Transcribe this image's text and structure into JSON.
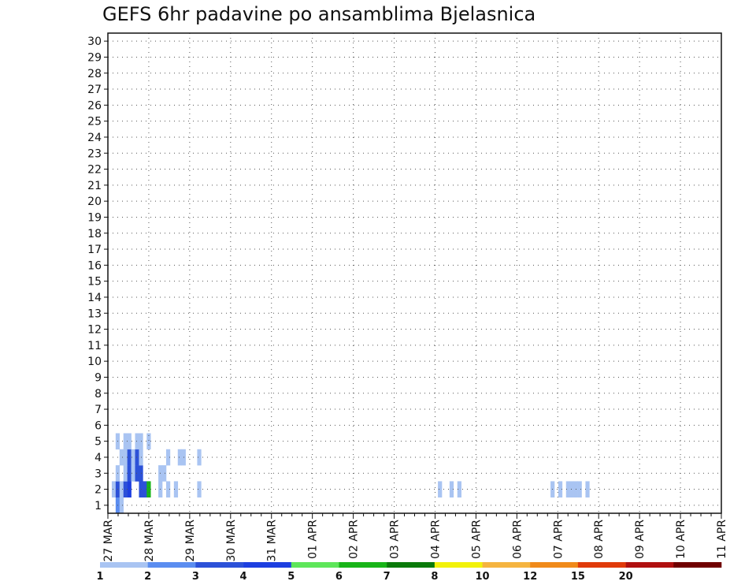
{
  "chart_data": {
    "type": "heatmap",
    "title": "GEFS 6hr padavine po ansamblima Bjelasnica",
    "x_tick_labels": [
      "27 MAR",
      "28 MAR",
      "29 MAR",
      "30 MAR",
      "31 MAR",
      "01 APR",
      "02 APR",
      "03 APR",
      "04 APR",
      "05 APR",
      "06 APR",
      "07 APR",
      "08 APR",
      "09 APR",
      "10 APR",
      "11 APR"
    ],
    "y_tick_labels": [
      "1",
      "2",
      "3",
      "4",
      "5",
      "6",
      "7",
      "8",
      "9",
      "10",
      "11",
      "12",
      "13",
      "14",
      "15",
      "16",
      "17",
      "18",
      "19",
      "20",
      "21",
      "22",
      "23",
      "24",
      "25",
      "26",
      "27",
      "28",
      "29",
      "30"
    ],
    "xlim_days": [
      0,
      15
    ],
    "ylim_members": [
      0.5,
      30.5
    ],
    "grid": "dotted",
    "colorbar": {
      "labels": [
        "1",
        "2",
        "3",
        "4",
        "5",
        "6",
        "7",
        "8",
        "10",
        "12",
        "15",
        "20"
      ],
      "colors": [
        "#a9c4f2",
        "#5b8df0",
        "#2c51d8",
        "#1d3fe0",
        "#5ee65a",
        "#18b418",
        "#0a7a0a",
        "#f2f20a",
        "#f5b440",
        "#f08a1a",
        "#e03a0a",
        "#b01010",
        "#700000"
      ],
      "legend_placement": "bottom"
    },
    "cell_colors_index_note": "0 = empty",
    "rows": [
      "00210000000000000000000000000000000000000000000000000000000000000000000000000000000000000000000000000000000000000000000000000000000000000000000000000000000000",
      "01313400336001010100000100000000000000000000000000000000000000000000000000000000000001001010000000000000000000000010101111010000000000000000000000000000000",
      "00101313300001100000000000000000000000000000000000000000000000000000000000000000000000000000000000000000000000000000000000000000000000000000000000000000000000",
      "00011313100000010011000100000000000000000000000000000000000000000000000000000000000000000000000000000000000000000000000000000000000000000000000000000000000000",
      "00101101101000000000000000000000000000000000000000000000000000000000000000000000000000000000000000000000000000000000000000000000000000000000000000000000000000"
    ]
  }
}
